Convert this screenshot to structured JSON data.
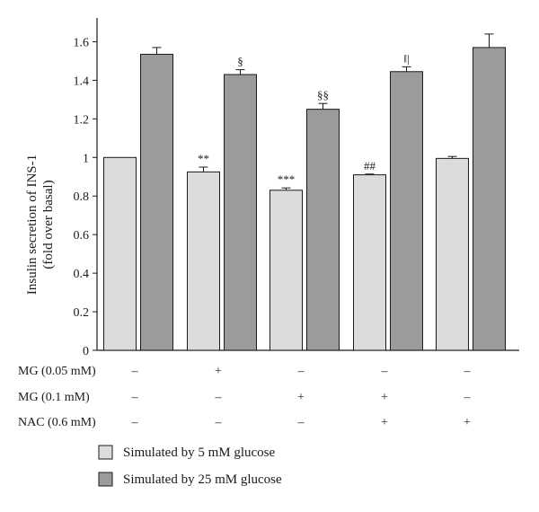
{
  "chart_data": {
    "type": "bar",
    "ylabel_line1": "Insulin secretion of INS-1",
    "ylabel_line2": "(fold over basal)",
    "ylim": [
      0,
      1.7
    ],
    "yticks": [
      "0",
      "0.2",
      "0.4",
      "0.6",
      "0.8",
      "1",
      "1.2",
      "1.4",
      "1.6"
    ],
    "ytick_values": [
      0,
      0.2,
      0.4,
      0.6,
      0.8,
      1.0,
      1.2,
      1.4,
      1.6
    ],
    "groups": 5,
    "series": [
      {
        "name": "Simulated by 5 mM glucose",
        "color": "#dcdcdc",
        "values": [
          1.0,
          0.925,
          0.83,
          0.91,
          0.995
        ],
        "errors": [
          0,
          0.025,
          0.012,
          0.004,
          0.01
        ],
        "annotations": [
          "",
          "**",
          "***",
          "##",
          ""
        ]
      },
      {
        "name": "Simulated by 25 mM glucose",
        "color": "#9b9b9b",
        "values": [
          1.535,
          1.43,
          1.25,
          1.445,
          1.57
        ],
        "errors": [
          0.035,
          0.025,
          0.03,
          0.025,
          0.07
        ],
        "annotations": [
          "",
          "§",
          "§§",
          "‖|",
          ""
        ]
      }
    ],
    "condition_rows": [
      {
        "label": "MG (0.05 mM)",
        "values": [
          "–",
          "+",
          "–",
          "–",
          "–"
        ]
      },
      {
        "label": "MG (0.1 mM)",
        "values": [
          "–",
          "–",
          "+",
          "+",
          "–"
        ]
      },
      {
        "label": "NAC (0.6 mM)",
        "values": [
          "–",
          "–",
          "–",
          "+",
          "+"
        ]
      }
    ],
    "legend": [
      {
        "label": "Simulated by 5 mM glucose",
        "color": "#dcdcdc"
      },
      {
        "label": "Simulated by 25 mM glucose",
        "color": "#9b9b9b"
      }
    ]
  }
}
